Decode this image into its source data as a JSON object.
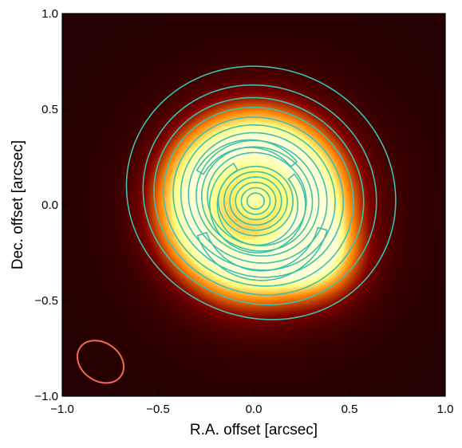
{
  "chart_data": {
    "type": "heatmap",
    "title": "",
    "xlabel": "R.A. offset [arcsec]",
    "ylabel": "Dec. offset [arcsec]",
    "xlim": [
      -1.0,
      1.0
    ],
    "ylim": [
      -1.0,
      1.0
    ],
    "xticks": [
      -1.0,
      -0.5,
      0.0,
      0.5,
      1.0
    ],
    "yticks": [
      -1.0,
      -0.5,
      0.0,
      0.5,
      1.0
    ],
    "xtick_labels": [
      "−1.0",
      "−0.5",
      "0.0",
      "0.5",
      "1.0"
    ],
    "ytick_labels": [
      "−1.0",
      "−0.5",
      "0.0",
      "0.5",
      "1.0"
    ],
    "grid": false,
    "background_color": "#1a0d04",
    "colormap": "afmhot",
    "contour_color": "#3fbfb0",
    "beam_color": "#f26a52",
    "image": {
      "components": [
        {
          "name": "ring",
          "x": 0.0,
          "y": 0.0,
          "radius": 0.33,
          "width": 0.13,
          "amplitude": 0.85
        },
        {
          "name": "bright-spot",
          "x": 0.35,
          "y": -0.28,
          "sigma": 0.14,
          "amplitude": 0.55
        },
        {
          "name": "center",
          "x": 0.0,
          "y": 0.02,
          "sigma": 0.09,
          "amplitude": 0.55
        },
        {
          "name": "halo",
          "x": 0.05,
          "y": -0.02,
          "sigma": 0.38,
          "amplitude": 0.35
        }
      ]
    },
    "contours": {
      "center": [
        0.01,
        0.02
      ],
      "outer_levels": [
        {
          "radius": 0.25,
          "shape": [
            0.03,
            0.05,
            0.0,
            -0.03
          ]
        },
        {
          "radius": 0.28,
          "shape": [
            0.03,
            0.05,
            0.0,
            -0.03
          ]
        },
        {
          "radius": 0.31,
          "shape": [
            0.03,
            0.06,
            0.0,
            -0.03
          ]
        },
        {
          "radius": 0.35,
          "shape": [
            0.03,
            0.06,
            0.0,
            -0.03
          ]
        },
        {
          "radius": 0.39,
          "shape": [
            0.03,
            0.06,
            0.0,
            -0.03
          ]
        },
        {
          "radius": 0.43,
          "shape": [
            0.03,
            0.06,
            0.0,
            -0.03
          ]
        },
        {
          "radius": 0.48,
          "shape": [
            0.03,
            0.06,
            0.0,
            -0.03
          ]
        },
        {
          "radius": 0.53,
          "shape": [
            0.03,
            0.06,
            0.0,
            -0.03
          ]
        },
        {
          "radius": 0.59,
          "shape": [
            0.03,
            0.07,
            0.0,
            -0.03
          ]
        },
        {
          "radius": 0.68,
          "shape": [
            0.03,
            0.08,
            0.0,
            -0.03
          ]
        }
      ],
      "inner_levels": [
        {
          "radius": 0.045
        },
        {
          "radius": 0.075
        },
        {
          "radius": 0.105
        },
        {
          "radius": 0.135
        },
        {
          "radius": 0.165
        },
        {
          "radius": 0.195
        }
      ],
      "arcs": [
        {
          "cx": 0.02,
          "cy": 0.0,
          "r": 0.23,
          "start_deg": 120,
          "end_deg": 400,
          "thickness": 0.02
        },
        {
          "cx": 0.04,
          "cy": -0.04,
          "r": 0.33,
          "start_deg": 200,
          "end_deg": 345,
          "thickness": 0.025
        },
        {
          "cx": -0.02,
          "cy": 0.02,
          "r": 0.3,
          "start_deg": 40,
          "end_deg": 150,
          "thickness": 0.02
        }
      ]
    },
    "beam": {
      "x": -0.8,
      "y": -0.82,
      "major": 0.13,
      "minor": 0.1,
      "angle_deg": -35
    }
  }
}
